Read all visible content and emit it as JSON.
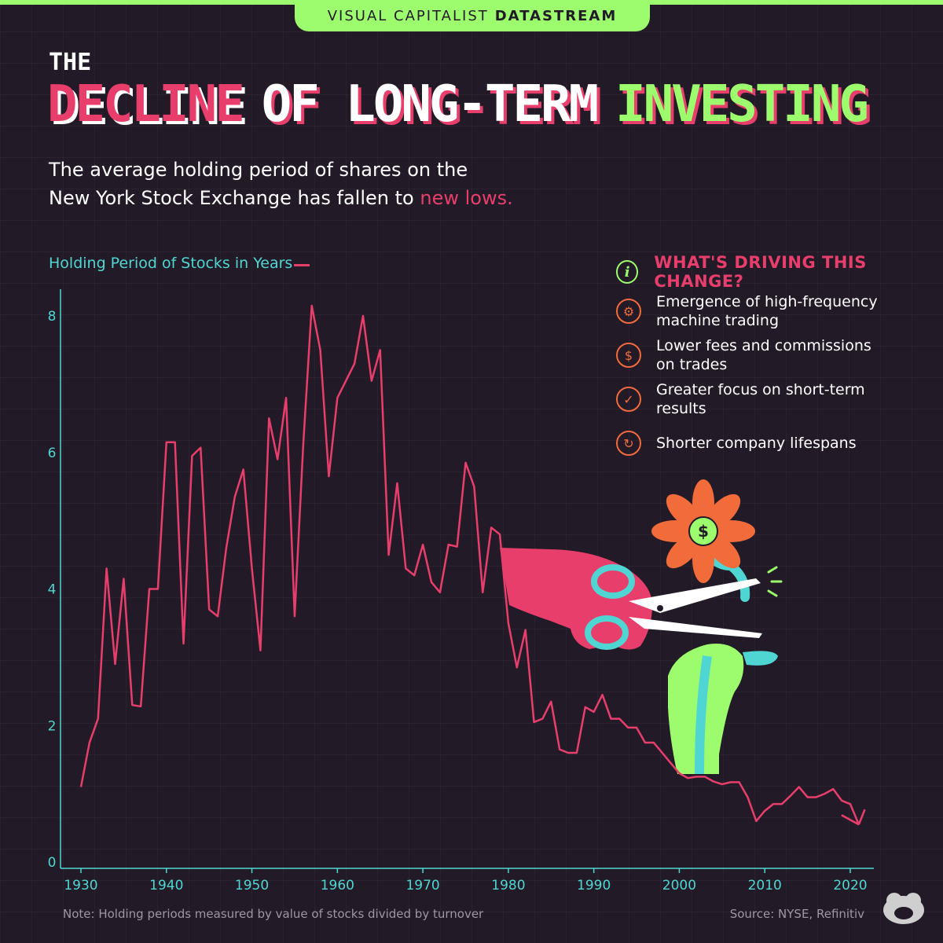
{
  "header": {
    "brand_light": "VISUAL CAPITALIST",
    "brand_bold": "DATASTREAM"
  },
  "title": {
    "line1": "THE",
    "word1": "DECLINE",
    "word2": "OF LONG-TERM",
    "word3": "INVESTING"
  },
  "subtitle": {
    "line1": "The average holding period of shares on the",
    "line2_plain": "New York Stock Exchange has fallen to ",
    "line2_highlight": "new lows."
  },
  "drivers": {
    "heading": "WHAT'S DRIVING THIS CHANGE?",
    "items": [
      {
        "label": "Emergence of high-frequency machine trading",
        "icon": "gear-icon"
      },
      {
        "label": "Lower fees and commissions on trades",
        "icon": "dollar-icon"
      },
      {
        "label": "Greater focus on short-term results",
        "icon": "stopwatch-icon"
      },
      {
        "label": "Shorter company lifespans",
        "icon": "cycle-icon"
      }
    ]
  },
  "footer": {
    "note": "Note: Holding periods measured by value of stocks divided by turnover",
    "source": "Source: NYSE, Refinitiv"
  },
  "colors": {
    "background": "#221b27",
    "line": "#e83e6c",
    "axis": "#4fd6d3",
    "accent_green": "#9dfc6d",
    "icon_orange": "#f26b3a"
  },
  "chart_data": {
    "type": "line",
    "title": "THE DECLINE OF LONG-TERM INVESTING",
    "ylabel": "Holding Period of Stocks in Years",
    "xlabel": "",
    "xlim": [
      1929,
      2023
    ],
    "ylim": [
      0,
      8.5
    ],
    "x_ticks": [
      1930,
      1940,
      1950,
      1960,
      1970,
      1980,
      1990,
      2000,
      2010,
      2020
    ],
    "y_ticks": [
      0,
      2,
      4,
      6,
      8
    ],
    "grid": true,
    "series": [
      {
        "name": "Holding Period of Stocks in Years",
        "x": [
          1930,
          1931,
          1932,
          1933,
          1934,
          1935,
          1936,
          1937,
          1938,
          1939,
          1940,
          1941,
          1942,
          1943,
          1944,
          1945,
          1946,
          1947,
          1948,
          1949,
          1950,
          1951,
          1952,
          1953,
          1954,
          1955,
          1956,
          1957,
          1958,
          1959,
          1960,
          1961,
          1962,
          1963,
          1964,
          1965,
          1966,
          1967,
          1968,
          1969,
          1970,
          1971,
          1972,
          1973,
          1974,
          1975,
          1976,
          1977,
          1978,
          1979,
          1980,
          1981,
          1982,
          1983,
          1984,
          1985,
          1986,
          1987,
          1988,
          1989,
          1990,
          1991,
          1992,
          1993,
          1994,
          1995,
          1996,
          1997,
          1998,
          1999,
          2000,
          2001,
          2002,
          2003,
          2004,
          2005,
          2006,
          2007,
          2008,
          2009,
          2010,
          2011,
          2012,
          2013,
          2014,
          2015,
          2016,
          2017,
          2018,
          2019,
          2020,
          2021
        ],
        "values": [
          1.1,
          1.75,
          2.1,
          4.3,
          2.9,
          4.15,
          2.3,
          2.28,
          4.0,
          4.0,
          6.15,
          6.15,
          3.2,
          5.95,
          6.07,
          3.7,
          3.6,
          4.6,
          5.35,
          5.75,
          4.3,
          3.1,
          6.5,
          5.9,
          6.8,
          3.6,
          6.1,
          8.15,
          7.5,
          5.65,
          6.8,
          7.05,
          7.3,
          8.0,
          7.05,
          7.5,
          4.5,
          5.55,
          4.3,
          4.2,
          4.65,
          4.1,
          3.95,
          4.65,
          4.62,
          5.85,
          5.5,
          3.95,
          4.9,
          4.8,
          3.5,
          2.85,
          3.4,
          2.05,
          2.1,
          2.35,
          1.65,
          1.6,
          1.6,
          2.27,
          2.2,
          2.45,
          2.1,
          2.1,
          1.97,
          1.97,
          1.75,
          1.75,
          1.6,
          1.45,
          1.3,
          1.23,
          1.25,
          1.25,
          1.18,
          1.14,
          1.17,
          1.17,
          0.95,
          0.6,
          0.75,
          0.85,
          0.85,
          0.97,
          1.1,
          0.95,
          0.95,
          1.0,
          1.07,
          0.9,
          0.85,
          0.55
        ]
      }
    ],
    "trailing_arrow_value": 0.77
  }
}
